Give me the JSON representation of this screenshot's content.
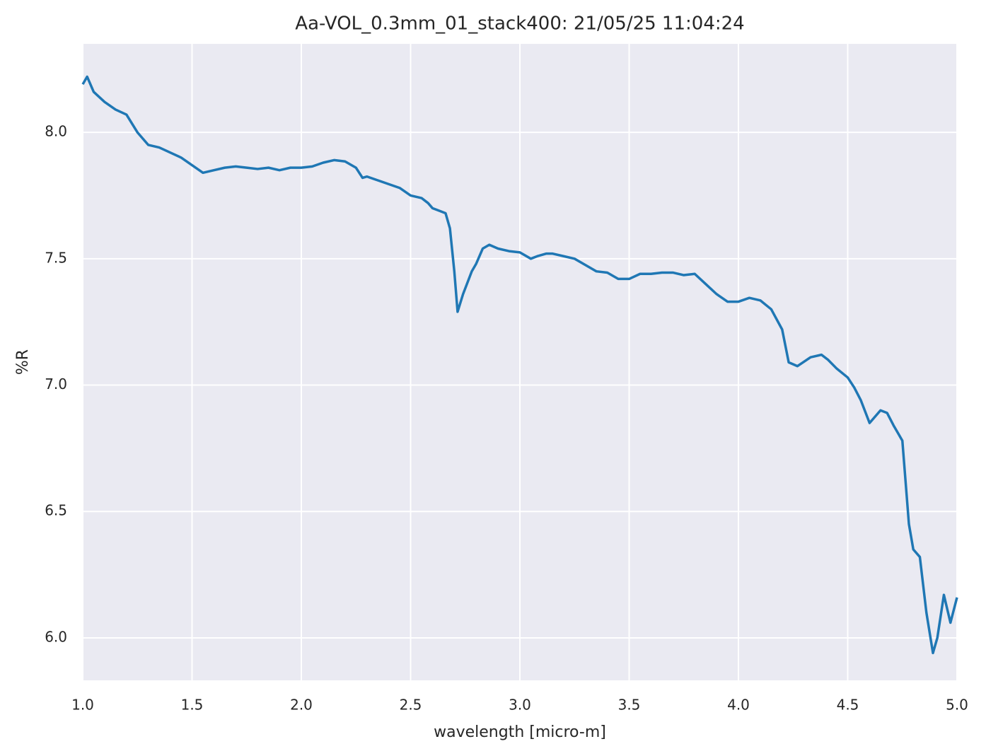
{
  "chart_data": {
    "type": "line",
    "title": "Aa-VOL_0.3mm_01_stack400:  21/05/25 11:04:24",
    "xlabel": "wavelength [micro-m]",
    "ylabel": "%R",
    "xlim": [
      1.0,
      5.0
    ],
    "ylim": [
      5.832,
      8.35
    ],
    "xticks": [
      {
        "value": 1.0,
        "label": "1.0"
      },
      {
        "value": 1.5,
        "label": "1.5"
      },
      {
        "value": 2.0,
        "label": "2.0"
      },
      {
        "value": 2.5,
        "label": "2.5"
      },
      {
        "value": 3.0,
        "label": "3.0"
      },
      {
        "value": 3.5,
        "label": "3.5"
      },
      {
        "value": 4.0,
        "label": "4.0"
      },
      {
        "value": 4.5,
        "label": "4.5"
      },
      {
        "value": 5.0,
        "label": "5.0"
      }
    ],
    "yticks": [
      {
        "value": 6.0,
        "label": "6.0"
      },
      {
        "value": 6.5,
        "label": "6.5"
      },
      {
        "value": 7.0,
        "label": "7.0"
      },
      {
        "value": 7.5,
        "label": "7.5"
      },
      {
        "value": 8.0,
        "label": "8.0"
      }
    ],
    "grid": true,
    "x": [
      1.0,
      1.02,
      1.05,
      1.1,
      1.15,
      1.2,
      1.25,
      1.3,
      1.35,
      1.4,
      1.45,
      1.5,
      1.55,
      1.6,
      1.65,
      1.7,
      1.75,
      1.8,
      1.85,
      1.9,
      1.95,
      2.0,
      2.05,
      2.1,
      2.15,
      2.2,
      2.25,
      2.28,
      2.3,
      2.35,
      2.4,
      2.45,
      2.5,
      2.55,
      2.58,
      2.6,
      2.63,
      2.66,
      2.68,
      2.7,
      2.715,
      2.74,
      2.78,
      2.8,
      2.83,
      2.86,
      2.9,
      2.95,
      3.0,
      3.05,
      3.08,
      3.12,
      3.15,
      3.2,
      3.25,
      3.3,
      3.35,
      3.4,
      3.45,
      3.5,
      3.55,
      3.6,
      3.65,
      3.7,
      3.75,
      3.8,
      3.85,
      3.9,
      3.95,
      4.0,
      4.05,
      4.1,
      4.15,
      4.2,
      4.23,
      4.27,
      4.33,
      4.38,
      4.41,
      4.45,
      4.5,
      4.53,
      4.56,
      4.6,
      4.65,
      4.68,
      4.71,
      4.75,
      4.78,
      4.8,
      4.83,
      4.86,
      4.89,
      4.91,
      4.94,
      4.97,
      5.0
    ],
    "series": [
      {
        "name": "%R",
        "color": "#1f77b4",
        "values": [
          8.19,
          8.22,
          8.16,
          8.12,
          8.09,
          8.07,
          8.0,
          7.95,
          7.94,
          7.92,
          7.9,
          7.87,
          7.84,
          7.85,
          7.86,
          7.865,
          7.86,
          7.855,
          7.86,
          7.85,
          7.86,
          7.86,
          7.865,
          7.88,
          7.89,
          7.885,
          7.86,
          7.82,
          7.825,
          7.81,
          7.795,
          7.78,
          7.75,
          7.74,
          7.72,
          7.7,
          7.69,
          7.68,
          7.62,
          7.45,
          7.29,
          7.36,
          7.45,
          7.48,
          7.54,
          7.555,
          7.54,
          7.53,
          7.525,
          7.5,
          7.51,
          7.52,
          7.52,
          7.51,
          7.5,
          7.475,
          7.45,
          7.445,
          7.42,
          7.42,
          7.44,
          7.44,
          7.445,
          7.445,
          7.435,
          7.44,
          7.4,
          7.36,
          7.33,
          7.33,
          7.345,
          7.335,
          7.3,
          7.22,
          7.09,
          7.075,
          7.11,
          7.12,
          7.1,
          7.065,
          7.03,
          6.99,
          6.94,
          6.85,
          6.9,
          6.89,
          6.84,
          6.78,
          6.45,
          6.35,
          6.32,
          6.1,
          5.94,
          6.0,
          6.17,
          6.06,
          6.16
        ]
      }
    ]
  }
}
